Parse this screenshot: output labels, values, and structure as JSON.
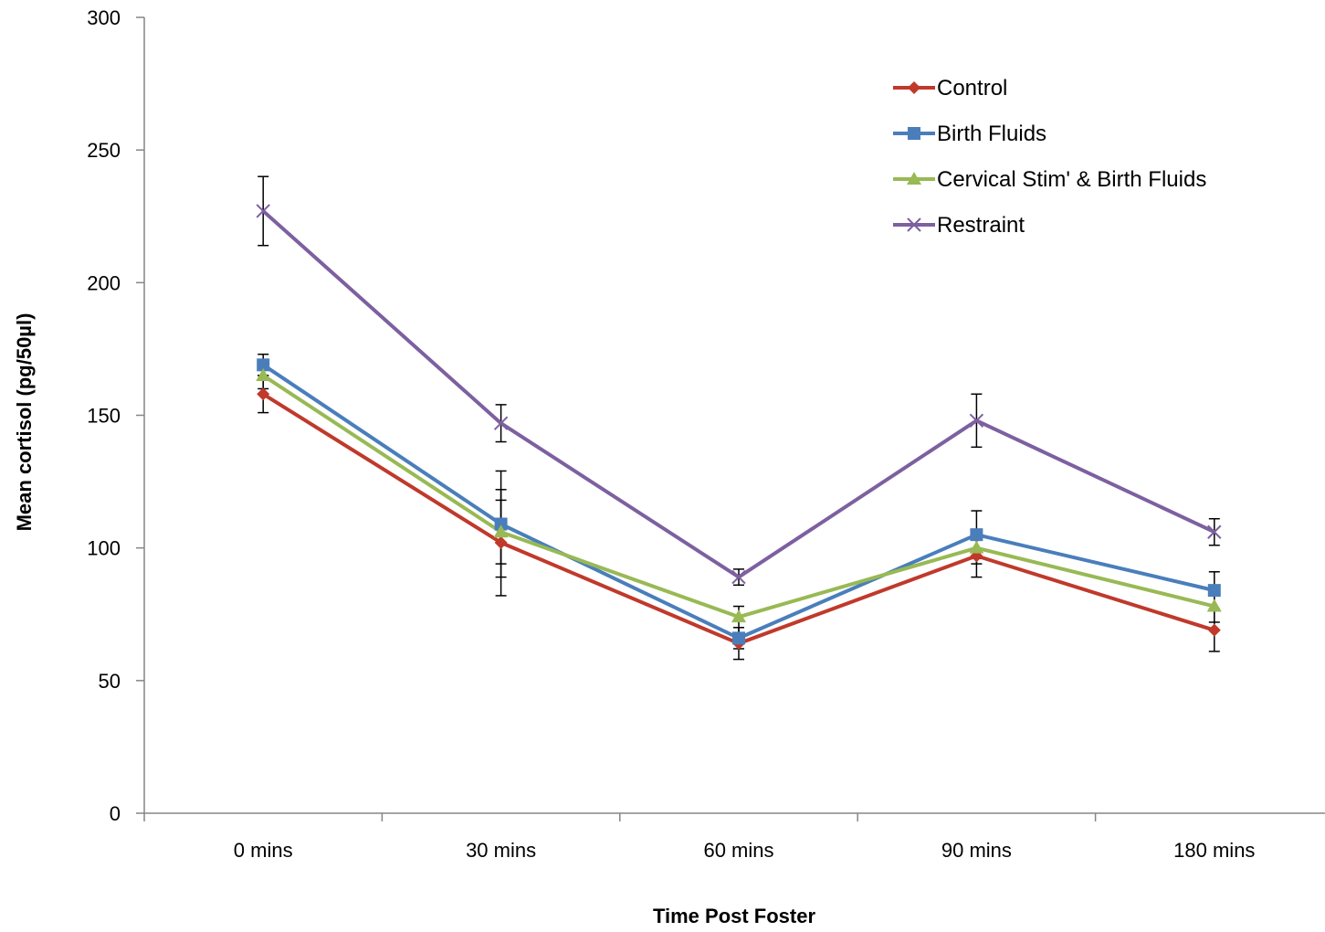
{
  "chart_data": {
    "type": "line",
    "title": "",
    "xlabel": "Time Post Foster",
    "ylabel": "Mean cortisol (pg/50µl)",
    "categories": [
      "0 mins",
      "30 mins",
      "60 mins",
      "90 mins",
      "180 mins"
    ],
    "ylim": [
      0,
      300
    ],
    "yticks": [
      0,
      50,
      100,
      150,
      200,
      250,
      300
    ],
    "grid": false,
    "legend_position": "top-right",
    "series": [
      {
        "name": "Control",
        "color": "#c0392b",
        "marker": "diamond",
        "values": [
          158,
          102,
          64,
          97,
          69
        ],
        "error": [
          7,
          20,
          6,
          8,
          8
        ]
      },
      {
        "name": "Birth Fluids",
        "color": "#4a7ebb",
        "marker": "square",
        "values": [
          169,
          109,
          66,
          105,
          84
        ],
        "error": [
          4,
          20,
          4,
          9,
          7
        ]
      },
      {
        "name": "Cervical Stim' & Birth Fluids",
        "color": "#98b954",
        "marker": "triangle",
        "values": [
          165,
          106,
          74,
          100,
          78
        ],
        "error": [
          5,
          12,
          4,
          6,
          6
        ]
      },
      {
        "name": "Restraint",
        "color": "#7d60a0",
        "marker": "x",
        "values": [
          227,
          147,
          89,
          148,
          106
        ],
        "error": [
          13,
          7,
          3,
          10,
          5
        ]
      }
    ]
  }
}
